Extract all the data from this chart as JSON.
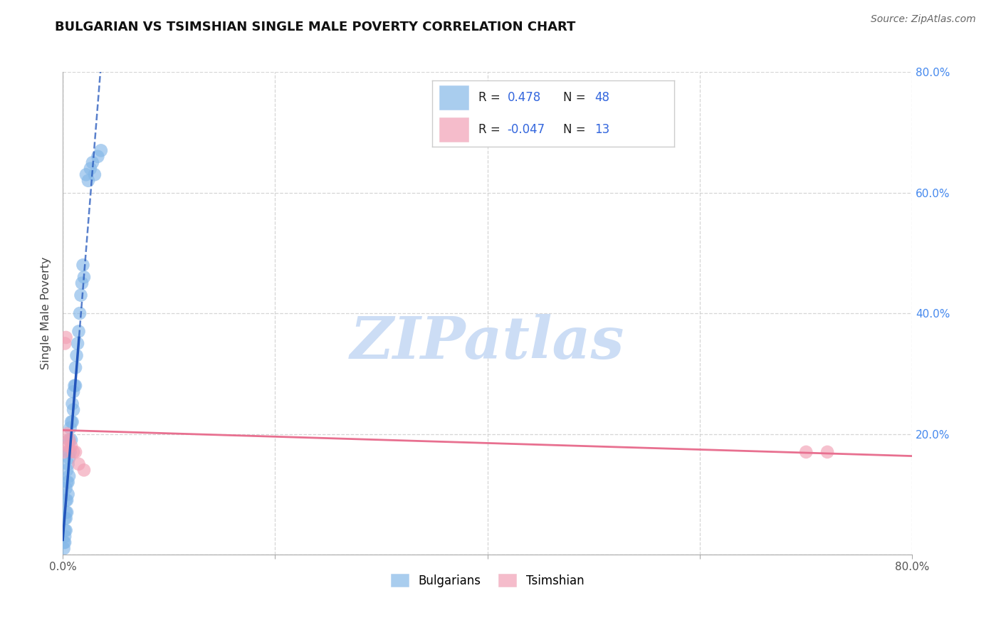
{
  "title": "BULGARIAN VS TSIMSHIAN SINGLE MALE POVERTY CORRELATION CHART",
  "source": "Source: ZipAtlas.com",
  "ylabel": "Single Male Poverty",
  "xlim": [
    0.0,
    0.8
  ],
  "ylim": [
    0.0,
    0.8
  ],
  "bulgarian_color": "#85b8e8",
  "tsimshian_color": "#f2a0b5",
  "line_bulgarian_color": "#2255bb",
  "line_tsimshian_color": "#e87090",
  "watermark_color": "#ccddf5",
  "R_bulgarian": 0.478,
  "N_bulgarian": 48,
  "R_tsimshian": -0.047,
  "N_tsimshian": 13,
  "bulgarian_x": [
    0.001,
    0.001,
    0.002,
    0.002,
    0.002,
    0.002,
    0.003,
    0.003,
    0.003,
    0.003,
    0.003,
    0.004,
    0.004,
    0.004,
    0.004,
    0.005,
    0.005,
    0.005,
    0.005,
    0.006,
    0.006,
    0.006,
    0.007,
    0.007,
    0.008,
    0.008,
    0.009,
    0.009,
    0.01,
    0.01,
    0.011,
    0.012,
    0.012,
    0.013,
    0.014,
    0.015,
    0.016,
    0.017,
    0.018,
    0.019,
    0.02,
    0.022,
    0.024,
    0.026,
    0.028,
    0.03,
    0.033,
    0.036
  ],
  "bulgarian_y": [
    0.01,
    0.02,
    0.02,
    0.03,
    0.04,
    0.06,
    0.04,
    0.06,
    0.07,
    0.09,
    0.11,
    0.07,
    0.09,
    0.12,
    0.14,
    0.1,
    0.12,
    0.15,
    0.17,
    0.13,
    0.16,
    0.19,
    0.17,
    0.21,
    0.19,
    0.22,
    0.22,
    0.25,
    0.24,
    0.27,
    0.28,
    0.28,
    0.31,
    0.33,
    0.35,
    0.37,
    0.4,
    0.43,
    0.45,
    0.48,
    0.46,
    0.63,
    0.62,
    0.64,
    0.65,
    0.63,
    0.66,
    0.67
  ],
  "tsimshian_x": [
    0.001,
    0.002,
    0.003,
    0.004,
    0.005,
    0.006,
    0.008,
    0.01,
    0.012,
    0.015,
    0.02,
    0.7,
    0.72
  ],
  "tsimshian_y": [
    0.17,
    0.35,
    0.36,
    0.2,
    0.18,
    0.19,
    0.18,
    0.17,
    0.17,
    0.15,
    0.14,
    0.17,
    0.17
  ],
  "legend_text_color": "#3366dd",
  "legend_label_color": "#222222"
}
